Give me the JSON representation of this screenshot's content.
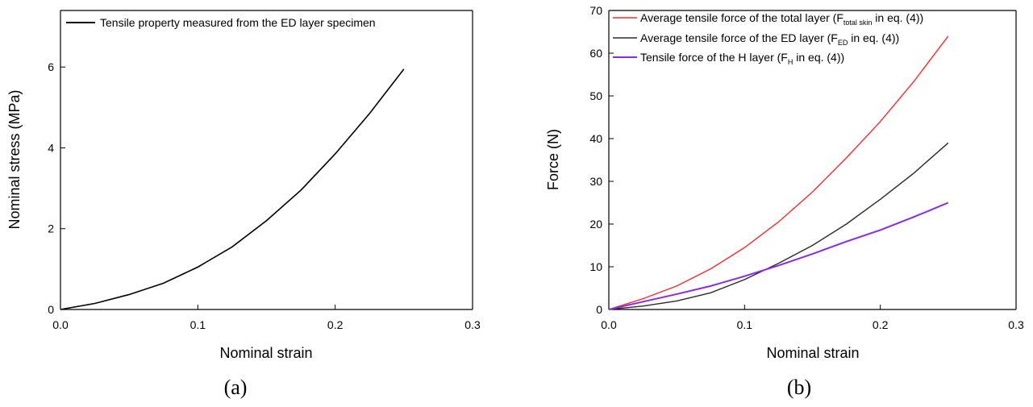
{
  "chart_data": [
    {
      "type": "line",
      "panel_label": "(a)",
      "xlabel": "Nominal strain",
      "ylabel": "Nominal stress (MPa)",
      "xlim": [
        0,
        0.3
      ],
      "ylim": [
        0,
        7.4
      ],
      "xticks": [
        "0.0",
        "0.1",
        "0.2",
        "0.3"
      ],
      "yticks": [
        "0",
        "2",
        "4",
        "6"
      ],
      "grid": false,
      "legend_position": "top-left",
      "series": [
        {
          "name": "Tensile property measured from the ED layer specimen",
          "color": "#000000",
          "x": [
            0,
            0.025,
            0.05,
            0.075,
            0.1,
            0.125,
            0.15,
            0.175,
            0.2,
            0.225,
            0.25
          ],
          "y": [
            0,
            0.15,
            0.37,
            0.65,
            1.05,
            1.55,
            2.2,
            2.95,
            3.85,
            4.85,
            5.95
          ]
        }
      ]
    },
    {
      "type": "line",
      "panel_label": "(b)",
      "xlabel": "Nominal strain",
      "ylabel": "Force (N)",
      "xlim": [
        0,
        0.3
      ],
      "ylim": [
        0,
        70
      ],
      "xticks": [
        "0.0",
        "0.1",
        "0.2",
        "0.3"
      ],
      "yticks": [
        "0",
        "10",
        "20",
        "30",
        "40",
        "50",
        "60",
        "70"
      ],
      "grid": false,
      "legend_position": "top-left",
      "series": [
        {
          "legend_main": "Average tensile force of the total layer (F",
          "legend_sub": "total skin",
          "legend_tail": " in eq. (4))",
          "color": "#ff2a2a",
          "x": [
            0,
            0.025,
            0.05,
            0.075,
            0.1,
            0.125,
            0.15,
            0.175,
            0.2,
            0.225,
            0.25
          ],
          "y": [
            0,
            2.5,
            5.5,
            9.5,
            14.5,
            20.5,
            27.5,
            35.5,
            44.0,
            53.5,
            64.0
          ]
        },
        {
          "legend_main": "Average tensile force of the ED layer (F",
          "legend_sub": "ED",
          "legend_tail": " in eq. (4))",
          "color": "#2a2a2a",
          "x": [
            0,
            0.025,
            0.05,
            0.075,
            0.1,
            0.125,
            0.15,
            0.175,
            0.2,
            0.225,
            0.25
          ],
          "y": [
            0,
            0.8,
            2.0,
            3.9,
            7.0,
            10.8,
            15.0,
            20.0,
            25.8,
            32.0,
            39.0
          ]
        },
        {
          "legend_main": "Tensile force of the H layer (F",
          "legend_sub": "H",
          "legend_tail": " in eq. (4))",
          "color": "#8a2be2",
          "x": [
            0,
            0.025,
            0.05,
            0.075,
            0.1,
            0.125,
            0.15,
            0.175,
            0.2,
            0.225,
            0.25
          ],
          "y": [
            0,
            1.8,
            3.6,
            5.5,
            7.8,
            10.3,
            13.0,
            15.9,
            18.6,
            21.7,
            25.0
          ]
        }
      ]
    }
  ]
}
